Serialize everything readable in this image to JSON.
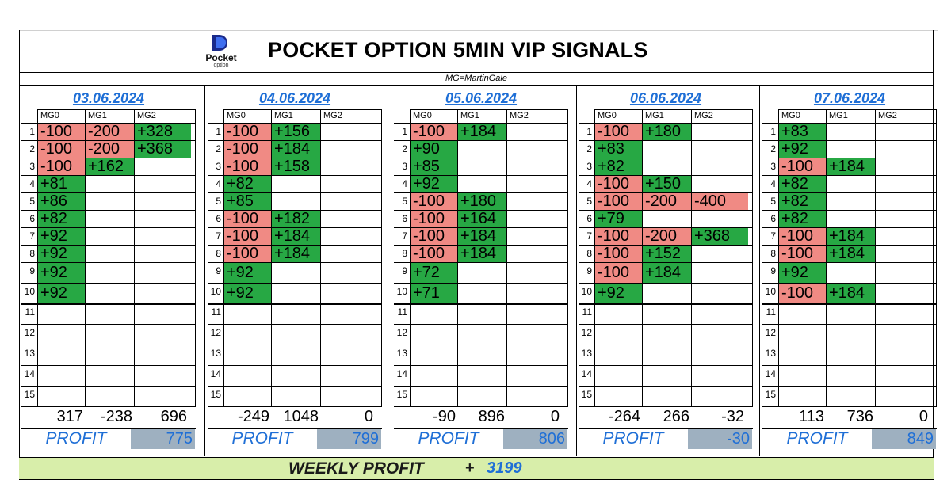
{
  "header": {
    "logo_word": "Pocket",
    "logo_sub": "option",
    "title": "POCKET OPTION 5MIN VIP SIGNALS",
    "mg_note": "MG=MartinGale"
  },
  "colors": {
    "loss": "#f08a84",
    "win": "#27a844",
    "accent": "#1f6fd6",
    "profit_box": "#9eb0c0",
    "weekly_bg": "#d8eeaa"
  },
  "column_headers": [
    "MG0",
    "MG1",
    "MG2"
  ],
  "profit_label": "PROFIT",
  "days": [
    {
      "date": "03.06.2024",
      "rows": [
        [
          "-100",
          "-200",
          "+328"
        ],
        [
          "-100",
          "-200",
          "+368"
        ],
        [
          "-100",
          "+162",
          ""
        ],
        [
          "+81",
          "",
          ""
        ],
        [
          "+86",
          "",
          ""
        ],
        [
          "+82",
          "",
          ""
        ],
        [
          "+92",
          "",
          ""
        ],
        [
          "+92",
          "",
          ""
        ],
        [
          "+92",
          "",
          ""
        ],
        [
          "+92",
          "",
          ""
        ],
        [
          "",
          "",
          ""
        ],
        [
          "",
          "",
          ""
        ],
        [
          "",
          "",
          ""
        ],
        [
          "",
          "",
          ""
        ],
        [
          "",
          "",
          ""
        ]
      ],
      "totals": [
        "317",
        "-238",
        "696"
      ],
      "profit": "775"
    },
    {
      "date": "04.06.2024",
      "rows": [
        [
          "-100",
          "+156",
          ""
        ],
        [
          "-100",
          "+184",
          ""
        ],
        [
          "-100",
          "+158",
          ""
        ],
        [
          "+82",
          "",
          ""
        ],
        [
          "+85",
          "",
          ""
        ],
        [
          "-100",
          "+182",
          ""
        ],
        [
          "-100",
          "+184",
          ""
        ],
        [
          "-100",
          "+184",
          ""
        ],
        [
          "+92",
          "",
          ""
        ],
        [
          "+92",
          "",
          ""
        ],
        [
          "",
          "",
          ""
        ],
        [
          "",
          "",
          ""
        ],
        [
          "",
          "",
          ""
        ],
        [
          "",
          "",
          ""
        ],
        [
          "",
          "",
          ""
        ]
      ],
      "totals": [
        "-249",
        "1048",
        "0"
      ],
      "profit": "799"
    },
    {
      "date": "05.06.2024",
      "rows": [
        [
          "-100",
          "+184",
          ""
        ],
        [
          "+90",
          "",
          ""
        ],
        [
          "+85",
          "",
          ""
        ],
        [
          "+92",
          "",
          ""
        ],
        [
          "-100",
          "+180",
          ""
        ],
        [
          "-100",
          "+164",
          ""
        ],
        [
          "-100",
          "+184",
          ""
        ],
        [
          "-100",
          "+184",
          ""
        ],
        [
          "+72",
          "",
          ""
        ],
        [
          "+71",
          "",
          ""
        ],
        [
          "",
          "",
          ""
        ],
        [
          "",
          "",
          ""
        ],
        [
          "",
          "",
          ""
        ],
        [
          "",
          "",
          ""
        ],
        [
          "",
          "",
          ""
        ]
      ],
      "totals": [
        "-90",
        "896",
        "0"
      ],
      "profit": "806"
    },
    {
      "date": "06.06.2024",
      "rows": [
        [
          "-100",
          "+180",
          ""
        ],
        [
          "+83",
          "",
          ""
        ],
        [
          "+82",
          "",
          ""
        ],
        [
          "-100",
          "+150",
          ""
        ],
        [
          "-100",
          "-200",
          "-400"
        ],
        [
          "+79",
          "",
          ""
        ],
        [
          "-100",
          "-200",
          "+368"
        ],
        [
          "-100",
          "+152",
          ""
        ],
        [
          "-100",
          "+184",
          ""
        ],
        [
          "+92",
          "",
          ""
        ],
        [
          "",
          "",
          ""
        ],
        [
          "",
          "",
          ""
        ],
        [
          "",
          "",
          ""
        ],
        [
          "",
          "",
          ""
        ],
        [
          "",
          "",
          ""
        ]
      ],
      "totals": [
        "-264",
        "266",
        "-32"
      ],
      "profit": "-30"
    },
    {
      "date": "07.06.2024",
      "rows": [
        [
          "+83",
          "",
          ""
        ],
        [
          "+92",
          "",
          ""
        ],
        [
          "-100",
          "+184",
          ""
        ],
        [
          "+82",
          "",
          ""
        ],
        [
          "+82",
          "",
          ""
        ],
        [
          "+82",
          "",
          ""
        ],
        [
          "-100",
          "+184",
          ""
        ],
        [
          "-100",
          "+184",
          ""
        ],
        [
          "+92",
          "",
          ""
        ],
        [
          "-100",
          "+184",
          ""
        ],
        [
          "",
          "",
          ""
        ],
        [
          "",
          "",
          ""
        ],
        [
          "",
          "",
          ""
        ],
        [
          "",
          "",
          ""
        ],
        [
          "",
          "",
          ""
        ]
      ],
      "totals": [
        "113",
        "736",
        "0"
      ],
      "profit": "849"
    }
  ],
  "weekly": {
    "label": "WEEKLY PROFIT",
    "sign": "+",
    "value": "3199"
  }
}
